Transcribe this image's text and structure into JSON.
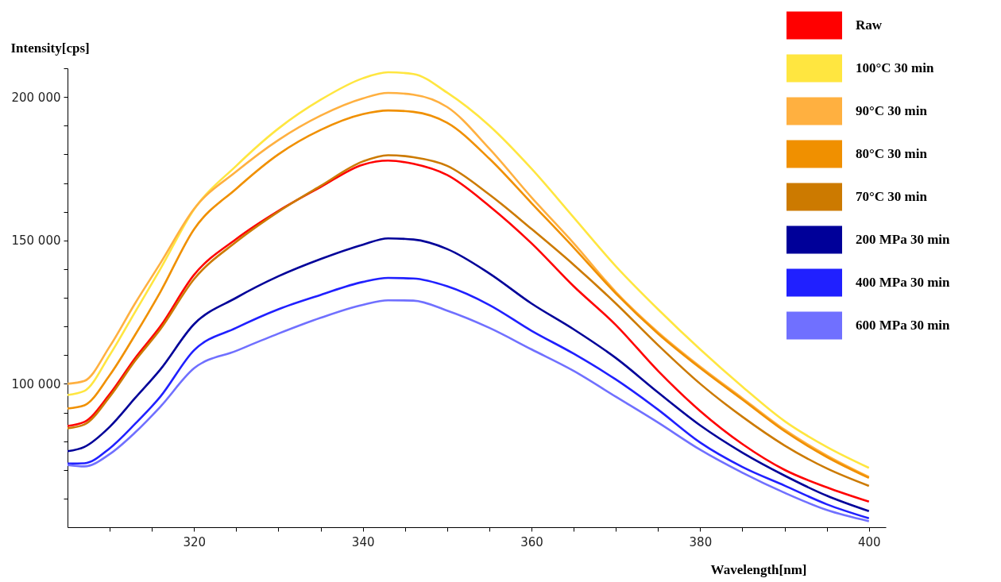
{
  "chart_data": {
    "type": "line",
    "xlabel": "Wavelength[nm]",
    "ylabel": "Intensity[cps]",
    "x": [
      305,
      307,
      310,
      313,
      316,
      320,
      325,
      330,
      335,
      340,
      343,
      346,
      350,
      355,
      360,
      365,
      370,
      375,
      380,
      385,
      390,
      395,
      400
    ],
    "series": [
      {
        "name": "Raw",
        "color": "#ff0000",
        "values": [
          85300,
          86700,
          96400,
          108900,
          120000,
          138000,
          150500,
          160300,
          168600,
          176400,
          177800,
          176700,
          172800,
          162000,
          149000,
          134000,
          120500,
          104500,
          90500,
          79000,
          70000,
          63900,
          58900
        ]
      },
      {
        "name": "100°C 30 min",
        "color": "#ffe640",
        "values": [
          96100,
          97500,
          110000,
          125000,
          140000,
          160800,
          176000,
          189000,
          199000,
          206500,
          208600,
          208000,
          201500,
          190000,
          175000,
          158000,
          141000,
          126000,
          112000,
          99000,
          87000,
          78000,
          70700
        ]
      },
      {
        "name": "90°C 30 min",
        "color": "#ffb040",
        "values": [
          100000,
          101000,
          113000,
          128000,
          142000,
          161000,
          174000,
          185000,
          193500,
          199500,
          201400,
          200800,
          196500,
          182000,
          165000,
          149000,
          132000,
          118000,
          106000,
          95000,
          84000,
          75000,
          67500
        ]
      },
      {
        "name": "80°C 30 min",
        "color": "#f09000",
        "values": [
          91400,
          92500,
          103000,
          117000,
          132000,
          153900,
          168000,
          180000,
          188500,
          194000,
          195300,
          194800,
          191000,
          178500,
          163000,
          147500,
          131500,
          117500,
          105500,
          94500,
          83500,
          74500,
          67200
        ]
      },
      {
        "name": "70°C 30 min",
        "color": "#cc7a00",
        "values": [
          84500,
          85800,
          95500,
          108000,
          119000,
          136500,
          149500,
          160000,
          169000,
          177500,
          179700,
          179000,
          176000,
          166000,
          154000,
          141500,
          128000,
          113500,
          100000,
          88500,
          78500,
          70500,
          64400
        ]
      },
      {
        "name": "200 MPa 30 min",
        "color": "#000099",
        "values": [
          76500,
          78000,
          85000,
          95000,
          105000,
          120800,
          130000,
          137500,
          143500,
          148500,
          150700,
          150300,
          147000,
          138500,
          128000,
          119000,
          109000,
          97000,
          85500,
          76000,
          68000,
          61000,
          55600
        ]
      },
      {
        "name": "400 MPa 30 min",
        "color": "#2020ff",
        "values": [
          72200,
          72300,
          77500,
          86000,
          95500,
          111700,
          119500,
          126000,
          131000,
          135500,
          136900,
          136700,
          134000,
          127500,
          118500,
          110500,
          101500,
          91000,
          79500,
          71000,
          64500,
          58000,
          53100
        ]
      },
      {
        "name": "600 MPa 30 min",
        "color": "#7070ff",
        "values": [
          71700,
          71200,
          75500,
          83000,
          92000,
          105400,
          111500,
          117500,
          123000,
          127500,
          129100,
          129000,
          125500,
          119500,
          112000,
          104500,
          95500,
          86500,
          77000,
          69000,
          62000,
          56000,
          52100
        ]
      }
    ],
    "xlim": [
      305,
      402
    ],
    "xticks": [
      {
        "value": 310,
        "label": null
      },
      {
        "value": 315,
        "label": null
      },
      320,
      {
        "value": 325,
        "label": null
      },
      {
        "value": 330,
        "label": null
      },
      {
        "value": 335,
        "label": null
      },
      340,
      {
        "value": 345,
        "label": null
      },
      {
        "value": 350,
        "label": null
      },
      {
        "value": 355,
        "label": null
      },
      360,
      {
        "value": 365,
        "label": null
      },
      {
        "value": 370,
        "label": null
      },
      {
        "value": 375,
        "label": null
      },
      380,
      {
        "value": 385,
        "label": null
      },
      {
        "value": 390,
        "label": null
      },
      {
        "value": 395,
        "label": null
      },
      400
    ],
    "ylim": [
      50000,
      210000
    ],
    "yticks": [
      {
        "value": 60000,
        "label": null
      },
      {
        "value": 70000,
        "label": null
      },
      {
        "value": 80000,
        "label": null
      },
      {
        "value": 90000,
        "label": null
      },
      {
        "value": 100000,
        "label": "100 000"
      },
      {
        "value": 110000,
        "label": null
      },
      {
        "value": 120000,
        "label": null
      },
      {
        "value": 130000,
        "label": null
      },
      {
        "value": 140000,
        "label": null
      },
      {
        "value": 150000,
        "label": "150 000"
      },
      {
        "value": 160000,
        "label": null
      },
      {
        "value": 170000,
        "label": null
      },
      {
        "value": 180000,
        "label": null
      },
      {
        "value": 190000,
        "label": null
      },
      {
        "value": 200000,
        "label": "200 000"
      },
      {
        "value": 210000,
        "label": null
      }
    ],
    "legend": "top right",
    "grid": false
  }
}
